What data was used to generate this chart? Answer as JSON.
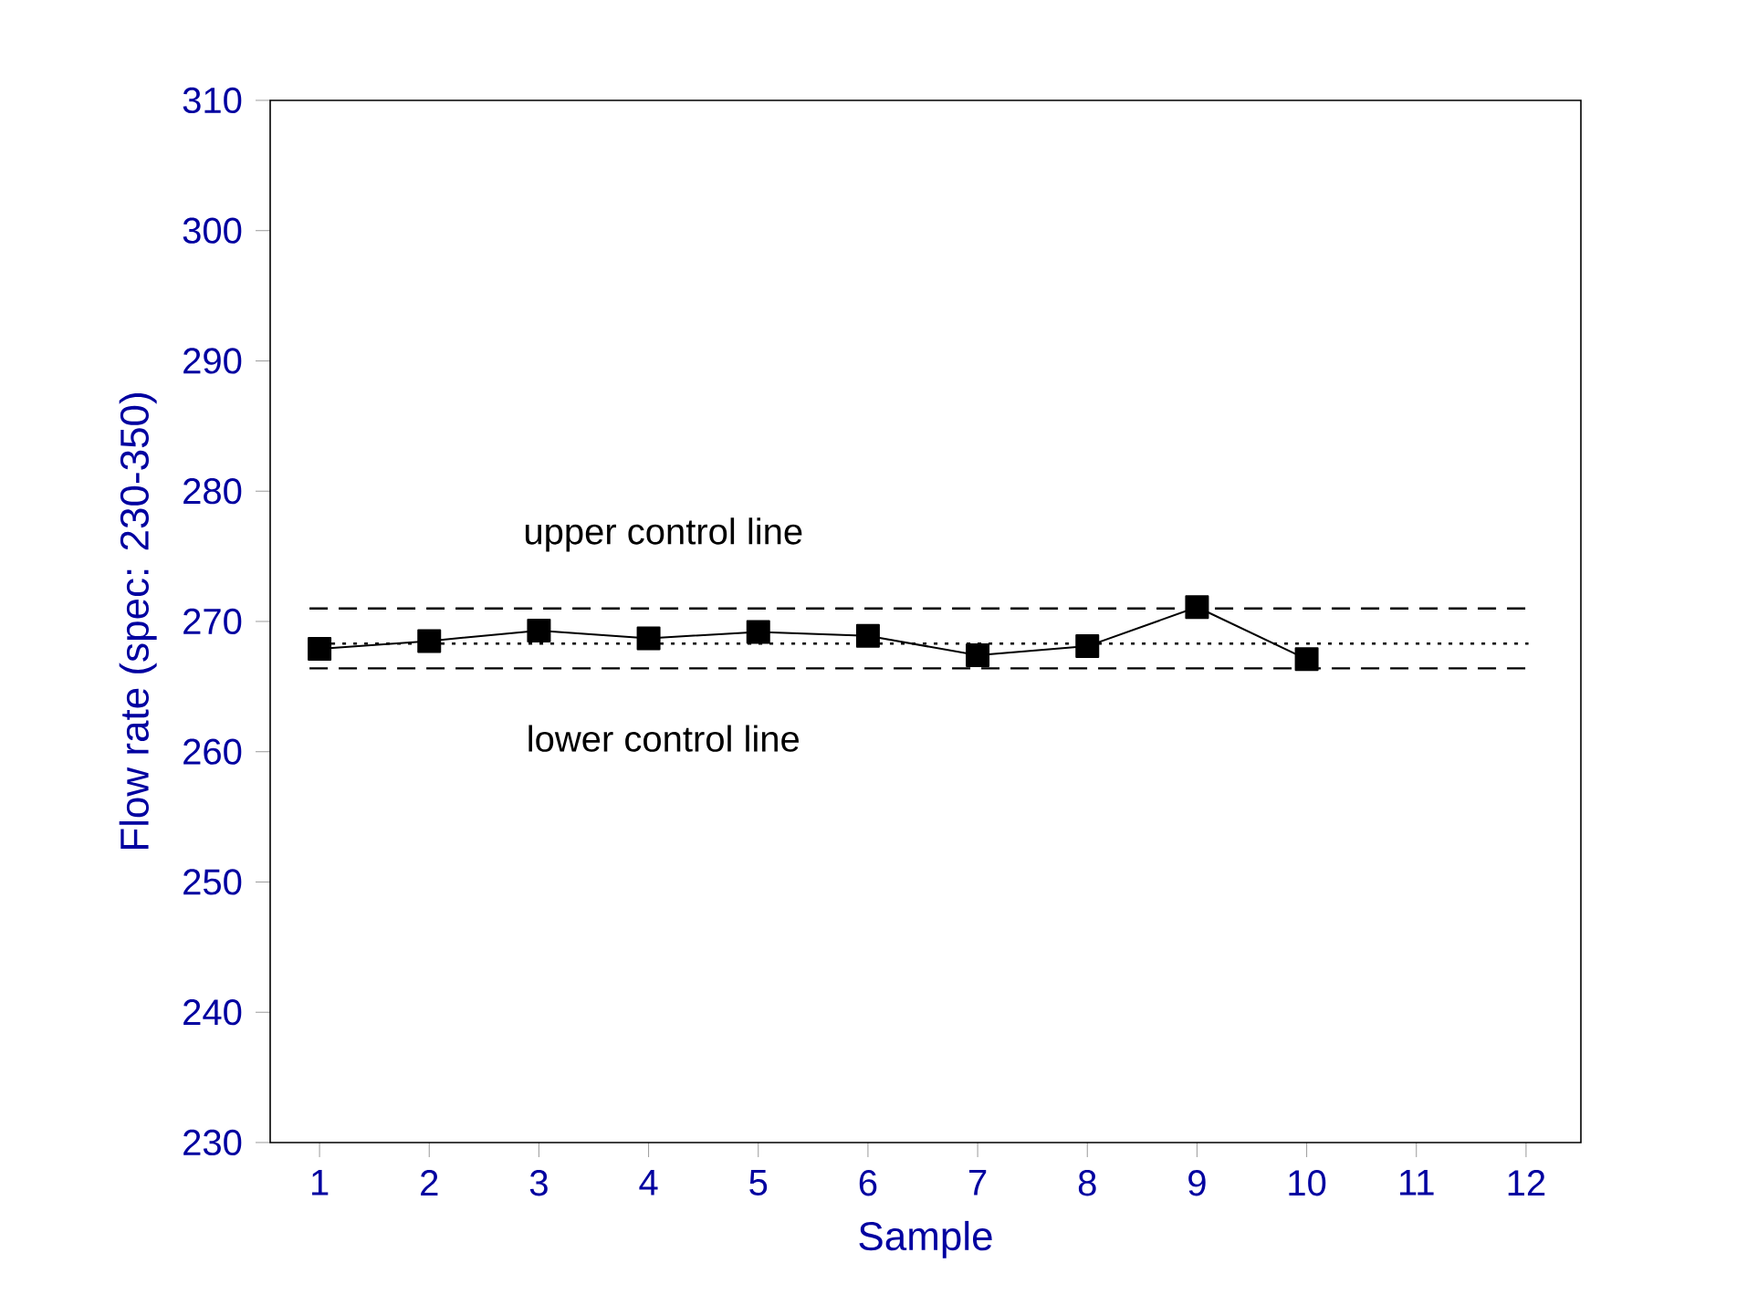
{
  "chart_data": {
    "type": "line",
    "xlabel": "Sample",
    "ylabel": "Flow rate (spec: 230-350)",
    "x": [
      1,
      2,
      3,
      4,
      5,
      6,
      7,
      8,
      9,
      10
    ],
    "values": [
      267.9,
      268.5,
      269.3,
      268.7,
      269.2,
      268.9,
      267.4,
      268.1,
      271.1,
      267.1
    ],
    "color": "#000000",
    "marker": "square",
    "line_style": "solid",
    "xlim": [
      0.55,
      12.5
    ],
    "xticks": [
      1,
      2,
      3,
      4,
      5,
      6,
      7,
      8,
      9,
      10,
      11,
      12
    ],
    "ylim": [
      230,
      310
    ],
    "yticks": [
      230,
      240,
      250,
      260,
      270,
      280,
      290,
      300,
      310
    ],
    "ref_lines": [
      {
        "axis": "y",
        "value": 271.0,
        "label": "upper control line",
        "line_style": "dashed",
        "color": "#000000"
      },
      {
        "axis": "y",
        "value": 268.3,
        "line_style": "dotted",
        "color": "#000000"
      },
      {
        "axis": "y",
        "value": 266.4,
        "label": "lower control line",
        "line_style": "dashed",
        "color": "#000000"
      }
    ],
    "grid": false
  }
}
